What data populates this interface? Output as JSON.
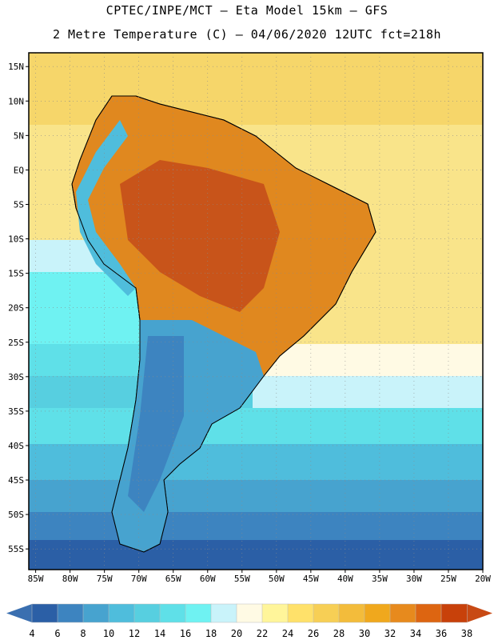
{
  "header": {
    "line1": "CPTEC/INPE/MCT –  Eta Model 15km – GFS",
    "line2": "2 Metre Temperature (C) – 04/06/2020 12UTC fct=218h"
  },
  "map": {
    "lat_labels": [
      "15N",
      "10N",
      "5N",
      "EQ",
      "5S",
      "10S",
      "15S",
      "20S",
      "25S",
      "30S",
      "35S",
      "40S",
      "45S",
      "50S",
      "55S"
    ],
    "lon_labels": [
      "85W",
      "80W",
      "75W",
      "70W",
      "65W",
      "60W",
      "55W",
      "50W",
      "45W",
      "40W",
      "35W",
      "30W",
      "25W",
      "20W"
    ],
    "lat_values": [
      15,
      10,
      5,
      0,
      -5,
      -10,
      -15,
      -20,
      -25,
      -30,
      -35,
      -40,
      -45,
      -50,
      -55
    ],
    "lon_values": [
      -85,
      -80,
      -75,
      -70,
      -65,
      -60,
      -55,
      -50,
      -45,
      -40,
      -35,
      -30,
      -25,
      -20
    ],
    "variable": "2 Metre Temperature",
    "units": "C"
  },
  "colorbar": {
    "ticks": [
      "4",
      "6",
      "8",
      "10",
      "12",
      "14",
      "16",
      "18",
      "20",
      "22",
      "24",
      "26",
      "28",
      "30",
      "32",
      "34",
      "36",
      "38"
    ],
    "colors": [
      "#2b5fa6",
      "#3d84c0",
      "#47a3cf",
      "#4fbddc",
      "#57cfe0",
      "#5fe0e8",
      "#6ff2f2",
      "#c9f3fa",
      "#fffae4",
      "#fff59a",
      "#ffe16a",
      "#f7cf55",
      "#f3bc3b",
      "#f0a81d",
      "#e78a1d",
      "#dd6511",
      "#c8410a"
    ],
    "low_arrow_color": "#3a6fb0",
    "high_arrow_color": "#c84a14"
  }
}
